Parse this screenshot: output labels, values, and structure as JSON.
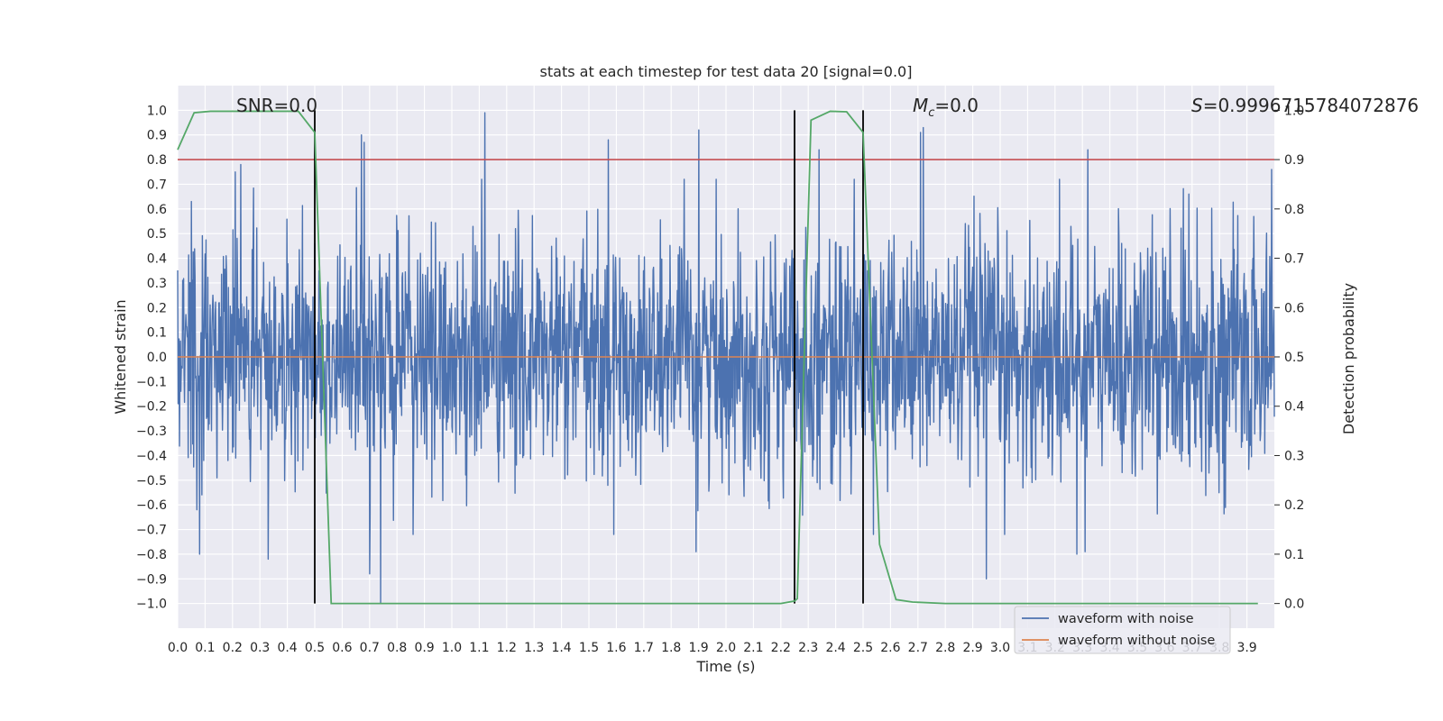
{
  "chart_data": {
    "type": "line",
    "title": "stats at each timestep for test data 20 [signal=0.0]",
    "xlabel": "Time (s)",
    "ylabel_left": "Whitened strain",
    "ylabel_right": "Detection probability",
    "xlim": [
      0.0,
      4.0
    ],
    "ylim_left": [
      -1.1,
      1.1
    ],
    "ylim_right": [
      -0.05,
      1.05
    ],
    "grid": true,
    "legend_position": "bottom-right",
    "x_tick_labels": [
      "0.0",
      "0.1",
      "0.2",
      "0.3",
      "0.4",
      "0.5",
      "0.6",
      "0.7",
      "0.8",
      "0.9",
      "1.0",
      "1.1",
      "1.2",
      "1.3",
      "1.4",
      "1.5",
      "1.6",
      "1.7",
      "1.8",
      "1.9",
      "2.0",
      "2.1",
      "2.2",
      "2.3",
      "2.4",
      "2.5",
      "2.6",
      "2.7",
      "2.8",
      "2.9",
      "3.0",
      "3.1",
      "3.2",
      "3.3",
      "3.4",
      "3.5",
      "3.6",
      "3.7",
      "3.8",
      "3.9"
    ],
    "y_left_tick_labels": [
      "1.0",
      "0.9",
      "0.8",
      "0.7",
      "0.6",
      "0.5",
      "0.4",
      "0.3",
      "0.2",
      "0.1",
      "0.0",
      "−0.1",
      "−0.2",
      "−0.3",
      "−0.4",
      "−0.5",
      "−0.6",
      "−0.7",
      "−0.8",
      "−0.9",
      "−1.0"
    ],
    "y_right_tick_labels": [
      "1.0",
      "0.9",
      "0.8",
      "0.7",
      "0.6",
      "0.5",
      "0.4",
      "0.3",
      "0.2",
      "0.1",
      "0.0"
    ],
    "annotations": {
      "snr": "SNR=0.0",
      "mc_symbol": "M",
      "mc_sub": "c",
      "mc_value": "=0.0",
      "s_symbol": "S",
      "s_value": "=0.9996715784072876"
    },
    "threshold_right": 0.9,
    "vertical_lines": [
      0.5,
      2.25,
      2.5
    ],
    "noise_series": {
      "name": "waveform with noise",
      "color": "#4c72b0",
      "t_start": 0.0,
      "t_end": 4.0,
      "amplitude_range": [
        -1.0,
        1.0
      ],
      "peaks": [
        {
          "t": 0.05,
          "v": 0.63
        },
        {
          "t": 0.07,
          "v": -0.62
        },
        {
          "t": 0.08,
          "v": -0.8
        },
        {
          "t": 0.21,
          "v": 0.75
        },
        {
          "t": 0.23,
          "v": 0.78
        },
        {
          "t": 0.33,
          "v": -0.82
        },
        {
          "t": 0.67,
          "v": 0.9
        },
        {
          "t": 0.68,
          "v": 0.87
        },
        {
          "t": 0.7,
          "v": -0.88
        },
        {
          "t": 0.74,
          "v": -1.0
        },
        {
          "t": 1.12,
          "v": 0.99
        },
        {
          "t": 1.57,
          "v": 0.88
        },
        {
          "t": 1.89,
          "v": -0.79
        },
        {
          "t": 1.9,
          "v": 0.92
        },
        {
          "t": 2.34,
          "v": 0.84
        },
        {
          "t": 2.71,
          "v": 0.91
        },
        {
          "t": 2.72,
          "v": 0.93
        },
        {
          "t": 2.95,
          "v": -0.9
        },
        {
          "t": 3.28,
          "v": -0.8
        },
        {
          "t": 3.31,
          "v": -0.79
        },
        {
          "t": 3.32,
          "v": 0.84
        },
        {
          "t": 3.99,
          "v": 0.76
        }
      ]
    },
    "clean_series": {
      "name": "waveform without noise",
      "color": "#dd8452",
      "value": 0.0
    },
    "probability_series": {
      "name": "detection probability",
      "color": "#55a868",
      "x": [
        0.0,
        0.06,
        0.12,
        0.2,
        0.3,
        0.44,
        0.5,
        0.56,
        0.62,
        1.0,
        2.0,
        2.2,
        2.25,
        2.26,
        2.31,
        2.38,
        2.44,
        2.5,
        2.56,
        2.62,
        2.68,
        2.8,
        3.0,
        3.5,
        3.94
      ],
      "y": [
        0.92,
        0.995,
        0.998,
        0.998,
        0.998,
        0.998,
        0.955,
        0.0,
        0.0,
        0.0,
        0.0,
        0.0,
        0.005,
        0.01,
        0.98,
        0.998,
        0.997,
        0.955,
        0.12,
        0.008,
        0.003,
        0.0,
        0.0,
        0.0,
        0.0
      ]
    },
    "colors": {
      "axes_bg": "#eaeaf2",
      "grid": "#ffffff",
      "threshold": "#c44e52",
      "vline": "#000000"
    }
  }
}
